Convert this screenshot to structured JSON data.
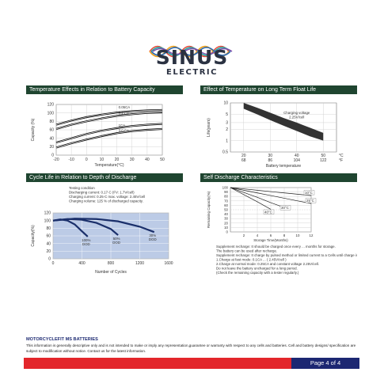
{
  "brand": {
    "name": "SINUS",
    "subtitle": "ELECTRIC"
  },
  "colors": {
    "header_bg": "#1f4530",
    "logo_waves": [
      "#e64a3c",
      "#f2a21b",
      "#27a6a0",
      "#2e6ab0",
      "#7c4dab"
    ],
    "footer_red": "#e3262b",
    "footer_blue": "#1c2772",
    "cycle_fill": "#bccbe6"
  },
  "panels": {
    "temp_capacity": {
      "title": "Temperature Effects in Relation to Battery Capacity"
    },
    "float_life": {
      "title": "Effect of Temperature on Long Term Float Life"
    },
    "cycle_life": {
      "title": "Cycle Life in Relation to Depth of Discharge"
    },
    "self_discharge": {
      "title": "Self Discharge Characteristics"
    }
  },
  "chart_data": [
    {
      "type": "line",
      "xlabel": "Temperature(°C)",
      "ylabel": "Capacity (%)",
      "xlim": [
        -20,
        50
      ],
      "ylim": [
        0,
        120
      ],
      "x_ticks": [
        -20,
        -10,
        0,
        10,
        20,
        30,
        40,
        50
      ],
      "y_ticks": [
        0,
        20,
        40,
        60,
        80,
        100,
        120
      ],
      "grid": true,
      "series": [
        {
          "name": "0.05CA",
          "x": [
            -20,
            -10,
            0,
            10,
            20,
            30,
            40,
            50
          ],
          "y": [
            72,
            82,
            90,
            96,
            101,
            104,
            106,
            107
          ]
        },
        {
          "name": "0.2 CA",
          "x": [
            -20,
            -10,
            0,
            10,
            20,
            30,
            40,
            50
          ],
          "y": [
            62,
            72,
            80,
            87,
            93,
            97,
            100,
            101
          ]
        },
        {
          "name": "1CA",
          "x": [
            -20,
            -10,
            0,
            10,
            20,
            30,
            40,
            50
          ],
          "y": [
            30,
            40,
            50,
            58,
            64,
            69,
            72,
            74
          ]
        },
        {
          "name": "3.0 CA",
          "x": [
            -20,
            -10,
            0,
            10,
            20,
            30,
            40,
            50
          ],
          "y": [
            18,
            28,
            37,
            45,
            52,
            57,
            60,
            62
          ]
        }
      ]
    },
    {
      "type": "area",
      "xlabel": "Battery temperature",
      "ylabel": "Life(years)",
      "log_y": true,
      "ylim": [
        0.5,
        10
      ],
      "y_ticks": [
        0.5,
        1,
        2,
        3,
        5,
        10
      ],
      "x_ticks_c": [
        20,
        30,
        40,
        50
      ],
      "x_ticks_f": [
        68,
        86,
        104,
        122
      ],
      "unit_c": "°C",
      "unit_f": "°F",
      "annotation_lines": [
        "Charging voltage",
        "2.25V/cell"
      ],
      "grid": true,
      "band": {
        "x": [
          20,
          25,
          30,
          35,
          40,
          45,
          50
        ],
        "upper": [
          10,
          7.5,
          5.5,
          4,
          3,
          2.2,
          1.6
        ],
        "lower": [
          7,
          5,
          3.5,
          2.5,
          1.8,
          1.3,
          1.0
        ]
      }
    },
    {
      "type": "area",
      "xlabel": "Number of Cycles",
      "ylabel": "Capacity(%)",
      "xlim": [
        0,
        1600
      ],
      "ylim": [
        0,
        120
      ],
      "x_ticks": [
        0,
        400,
        800,
        1200,
        1600
      ],
      "y_ticks": [
        0,
        20,
        40,
        60,
        80,
        100,
        120
      ],
      "grid": true,
      "condition_lines": [
        "Testing  condition",
        "Discharging current: 0.17·C (FV: 1.7V/cell)",
        "Charging current: 0.25·C max. voltage: 2.45V/cell",
        "Charging volume: 125 % of discharged capacity."
      ],
      "series": [
        {
          "name": "100% DOD",
          "x": [
            0,
            100,
            200,
            300,
            400,
            480
          ],
          "y": [
            100,
            103,
            100,
            90,
            72,
            58
          ]
        },
        {
          "name": "50% DOD",
          "x": [
            0,
            200,
            400,
            600,
            800,
            900
          ],
          "y": [
            100,
            104,
            102,
            94,
            78,
            62
          ]
        },
        {
          "name": "30% DOD",
          "x": [
            0,
            300,
            600,
            900,
            1200,
            1400
          ],
          "y": [
            100,
            105,
            104,
            98,
            84,
            70
          ]
        }
      ]
    },
    {
      "type": "line",
      "xlabel": "Storage Time(Months)",
      "ylabel": "Remaining Capacity(%)",
      "xlim": [
        0,
        12
      ],
      "ylim": [
        0,
        100
      ],
      "x_ticks": [
        2,
        4,
        6,
        8,
        10,
        12
      ],
      "y_ticks": [
        0,
        10,
        20,
        30,
        40,
        50,
        60,
        70,
        80,
        90,
        100
      ],
      "grid": true,
      "series": [
        {
          "name": "40°C",
          "x": [
            0,
            2,
            4,
            6
          ],
          "y": [
            100,
            84,
            68,
            51
          ]
        },
        {
          "name": "30°C",
          "x": [
            0,
            2,
            4,
            6,
            8
          ],
          "y": [
            100,
            89,
            78,
            66,
            55
          ]
        },
        {
          "name": "25°C",
          "x": [
            0,
            2,
            4,
            6,
            8,
            10,
            12
          ],
          "y": [
            100,
            94,
            88,
            82,
            76,
            70,
            64
          ]
        },
        {
          "name": "10°C",
          "x": [
            0,
            2,
            4,
            6,
            8,
            10,
            12
          ],
          "y": [
            100,
            97,
            94,
            91,
            88,
            85,
            82
          ]
        }
      ],
      "notes": [
        "Supplement recharge: It should be charged once every ... months for storage.",
        "The battery can be used after recharge.",
        "Supplement recharge: It charge by pulsed method or limited current to a Cells until charge is full.",
        "1.Charge at fast mode: 0.1CA ... ( 2.45V/cell )",
        "2.Charge at normal mode: 0.25CA and constant voltage 2.25V/cell.",
        "Do not leave the battery uncharged for a long period.",
        "(Check the remaining capacity with a tester regularly.)"
      ]
    }
  ],
  "footer": {
    "title": "MOTORCYCLEFIT MS BATTERIES",
    "text": "This information is generally descriptive only and is not intended to make or imply any representation,guarantee or warranty with respect to any cells and batteries. Cell and battery designs/ specification are subject to modification without notice. Contact us for the latest information.",
    "page_label": "Page 4 of 4"
  }
}
